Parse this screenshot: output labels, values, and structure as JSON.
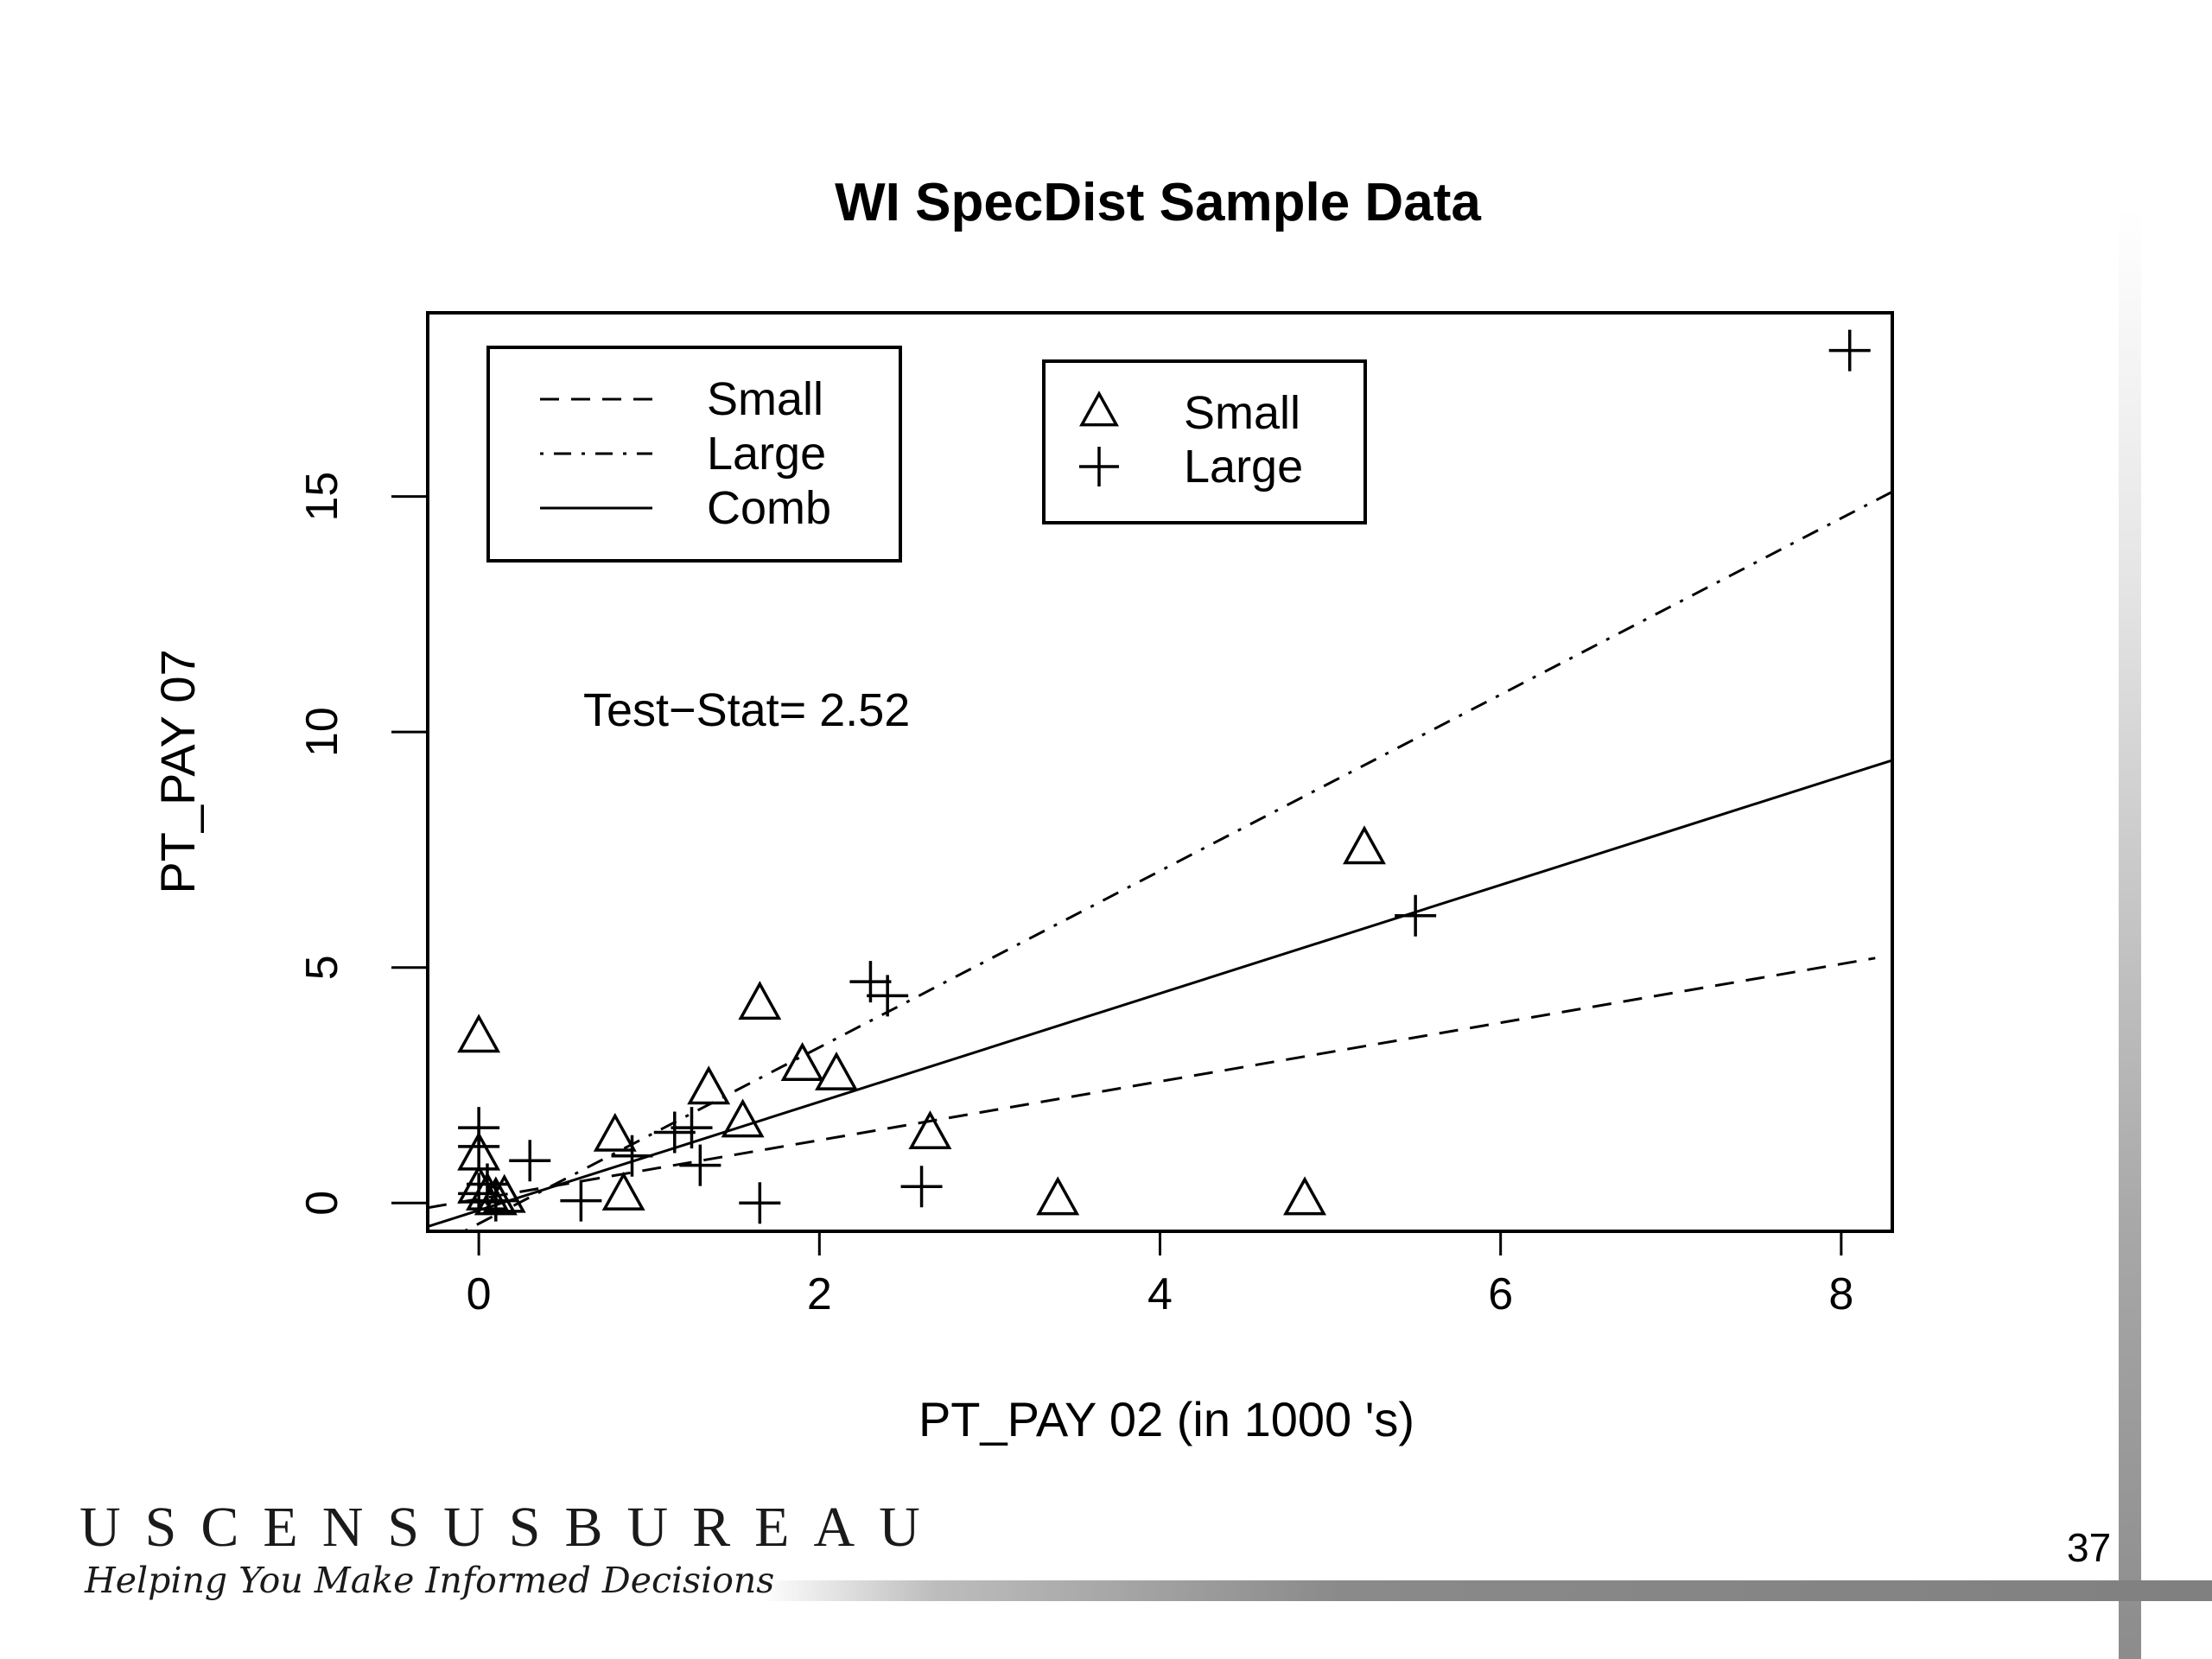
{
  "chart_data": {
    "type": "scatter",
    "title": "WI SpecDist Sample Data",
    "xlabel": "PT_PAY 02 (in  1000 's)",
    "ylabel": "PT_PAY 07",
    "xlim": [
      -0.3,
      8.3
    ],
    "ylim": [
      -0.6,
      18.9
    ],
    "x_ticks": [
      0,
      2,
      4,
      6,
      8
    ],
    "y_ticks": [
      0,
      5,
      10,
      15
    ],
    "x_tick_labels": [
      "0",
      "2",
      "4",
      "6",
      "8"
    ],
    "y_tick_labels": [
      "0",
      "5",
      "10",
      "15"
    ],
    "grid": false,
    "annotation": "Test−Stat= 2.52",
    "line_legend": {
      "placement": "top-left",
      "entries": [
        {
          "label": "Small",
          "style": "dashed"
        },
        {
          "label": "Large",
          "style": "dashdot"
        },
        {
          "label": "Comb",
          "style": "solid"
        }
      ]
    },
    "point_legend": {
      "placement": "top-center",
      "entries": [
        {
          "label": "Small",
          "marker": "triangle"
        },
        {
          "label": "Large",
          "marker": "plus"
        }
      ]
    },
    "series": [
      {
        "name": "Small",
        "marker": "triangle",
        "points": [
          [
            0,
            3.5
          ],
          [
            0,
            1.0
          ],
          [
            0,
            0.3
          ],
          [
            0.05,
            0.15
          ],
          [
            0.1,
            0.05
          ],
          [
            0.15,
            0.1
          ],
          [
            0.8,
            1.4
          ],
          [
            0.85,
            0.15
          ],
          [
            1.35,
            2.4
          ],
          [
            1.65,
            4.2
          ],
          [
            1.9,
            2.9
          ],
          [
            2.1,
            2.7
          ],
          [
            1.55,
            1.7
          ],
          [
            2.65,
            1.45
          ],
          [
            3.4,
            0.05
          ],
          [
            4.85,
            0.05
          ],
          [
            5.2,
            7.5
          ]
        ]
      },
      {
        "name": "Large",
        "marker": "plus",
        "points": [
          [
            0,
            1.6
          ],
          [
            0,
            1.2
          ],
          [
            0,
            0.2
          ],
          [
            0.05,
            0.4
          ],
          [
            0.1,
            0.05
          ],
          [
            0.3,
            0.9
          ],
          [
            0.6,
            0.05
          ],
          [
            0.9,
            1.0
          ],
          [
            1.15,
            1.5
          ],
          [
            1.25,
            1.6
          ],
          [
            1.3,
            0.8
          ],
          [
            1.65,
            0.0
          ],
          [
            2.3,
            4.7
          ],
          [
            2.4,
            4.4
          ],
          [
            2.6,
            0.35
          ],
          [
            5.5,
            6.1
          ],
          [
            8.05,
            18.1
          ]
        ]
      }
    ],
    "fit_lines": [
      {
        "name": "Small",
        "style": "dashed",
        "from": [
          -0.3,
          -0.1
        ],
        "to": [
          8.2,
          5.2
        ]
      },
      {
        "name": "Large",
        "style": "dashdot",
        "from": [
          -0.3,
          -1.0
        ],
        "to": [
          8.3,
          15.1
        ]
      },
      {
        "name": "Comb",
        "style": "solid",
        "from": [
          -0.3,
          -0.5
        ],
        "to": [
          8.3,
          9.4
        ]
      }
    ]
  },
  "footer": {
    "brand": "USCENSUSBUREAU",
    "tagline": "Helping You Make Informed Decisions",
    "page_number": "37"
  },
  "colors": {
    "ink": "#000000",
    "accent_bar": "#8c8c8c"
  }
}
